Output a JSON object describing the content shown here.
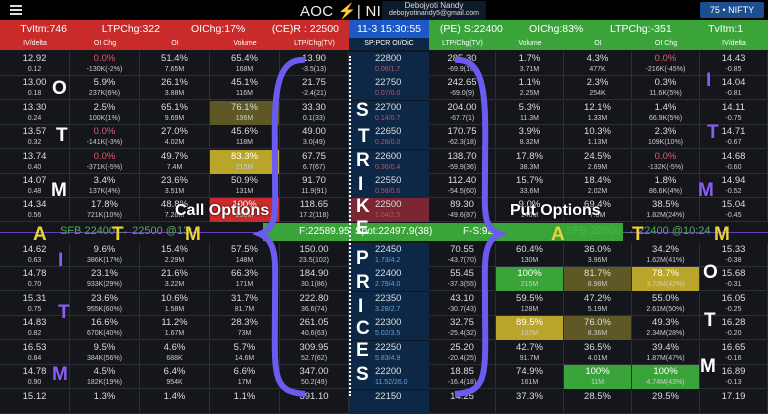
{
  "topbar": {
    "title": "AOC ⚡| NIFTY",
    "user_name": "Debojyoti Nandy",
    "user_email": "debojyotinandy5@gmail.com",
    "lot_button": "75 • NIFTY"
  },
  "summary": {
    "ce": {
      "tvitm": "TvItm:746",
      "ltp_chg": "LTPChg:322",
      "oi_chg": "OIChg:17%",
      "resistance": "(CE)R : 22500"
    },
    "timestamp": "11-3 15:30:55",
    "pe": {
      "support": "(PE) S:22400",
      "oi_chg": "OIChg:83%",
      "ltp_chg": "LTPChg:-351",
      "tvitm": "TvItm:1"
    }
  },
  "headers": {
    "ce": [
      "IV/delta",
      "OI Chg",
      "OI",
      "Volume",
      "LTP/Chg(TV)"
    ],
    "mid": "SP:PCR OI/OiC",
    "pe": [
      "LTP/Chg(TV)",
      "Volume",
      "OI",
      "OI Chg",
      "IV/delta"
    ]
  },
  "rows": [
    {
      "ce": [
        [
          "12.92",
          "0.12"
        ],
        [
          "0.0%",
          "-130K(-2%)"
        ],
        [
          "51.4%",
          "7.65M"
        ],
        [
          "65.4%",
          "168M"
        ],
        [
          "13.90",
          "-3.5(13)"
        ]
      ],
      "strike": [
        "22800",
        "0.06/1.7"
      ],
      "pe": [
        [
          "285.30",
          "-69.9(16)"
        ],
        [
          "1.7%",
          "3.71M"
        ],
        [
          "4.3%",
          "477K"
        ],
        [
          "0.0%",
          "-216K(-45%)"
        ],
        [
          "14.43",
          "-0.85"
        ]
      ]
    },
    {
      "ce": [
        [
          "13.00",
          "0.18"
        ],
        [
          "5.9%",
          "237K(6%)"
        ],
        [
          "26.1%",
          "3.88M"
        ],
        [
          "45.1%",
          "116M"
        ],
        [
          "21.75",
          "-2.4(21)"
        ]
      ],
      "strike": [
        "22750",
        "0.07/0.0"
      ],
      "pe": [
        [
          "242.65",
          "-69.0(9)"
        ],
        [
          "1.1%",
          "2.25M"
        ],
        [
          "2.3%",
          "254K"
        ],
        [
          "0.3%",
          "11.6K(5%)"
        ],
        [
          "14.04",
          "-0.81"
        ]
      ]
    },
    {
      "ce": [
        [
          "13.30",
          "0.24"
        ],
        [
          "2.5%",
          "100K(1%)"
        ],
        [
          "65.1%",
          "9.69M"
        ],
        [
          "76.1%",
          "196M"
        ],
        [
          "33.30",
          "0.1(33)"
        ]
      ],
      "strike": [
        "22700",
        "0.14/0.7"
      ],
      "pe": [
        [
          "204.00",
          "-67.7(1)"
        ],
        [
          "5.3%",
          "11.3M"
        ],
        [
          "12.1%",
          "1.33M"
        ],
        [
          "1.4%",
          "66.9K(5%)"
        ],
        [
          "14.11",
          "-0.75"
        ]
      ]
    },
    {
      "ce": [
        [
          "13.57",
          "0.32"
        ],
        [
          "0.0%",
          "-141K(-3%)"
        ],
        [
          "27.0%",
          "4.02M"
        ],
        [
          "45.6%",
          "118M"
        ],
        [
          "49.00",
          "3.0(49)"
        ]
      ],
      "strike": [
        "22650",
        "0.28/0.0"
      ],
      "pe": [
        [
          "170.75",
          "-62.3(18)"
        ],
        [
          "3.9%",
          "8.32M"
        ],
        [
          "10.3%",
          "1.13M"
        ],
        [
          "2.3%",
          "109K(10%)"
        ],
        [
          "14.71",
          "-0.67"
        ]
      ]
    },
    {
      "ce": [
        [
          "13.74",
          "0.40"
        ],
        [
          "0.0%",
          "-371K(-5%)"
        ],
        [
          "49.7%",
          "7.4M"
        ],
        [
          "83.3%",
          "215M"
        ],
        [
          "67.75",
          "6.7(67)"
        ]
      ],
      "strike": [
        "22600",
        "0.36/0.4"
      ],
      "pe": [
        [
          "138.70",
          "-59.9(36)"
        ],
        [
          "17.8%",
          "38.3M"
        ],
        [
          "24.5%",
          "2.69M"
        ],
        [
          "0.0%",
          "-132K(-5%)"
        ],
        [
          "14.68",
          "-0.60"
        ]
      ]
    },
    {
      "ce": [
        [
          "14.07",
          "0.48"
        ],
        [
          "3.4%",
          "137K(4%)"
        ],
        [
          "23.6%",
          "3.51M"
        ],
        [
          "50.9%",
          "131M"
        ],
        [
          "91.70",
          "11.9(91)"
        ]
      ],
      "strike": [
        "22550",
        "0.58/0.6"
      ],
      "pe": [
        [
          "112.40",
          "-54.5(60)"
        ],
        [
          "15.7%",
          "33.6M"
        ],
        [
          "18.4%",
          "2.02M"
        ],
        [
          "1.8%",
          "86.6K(4%)"
        ],
        [
          "14.94",
          "-0.52"
        ]
      ]
    },
    {
      "ce": [
        [
          "14.34",
          "0.56"
        ],
        [
          "17.8%",
          "721K(10%)"
        ],
        [
          "48.8%",
          "7.28M"
        ],
        [
          "100%",
          "250M"
        ],
        [
          "118.65",
          "17.2(118)"
        ]
      ],
      "strike": [
        "22500",
        "1.04/2.5"
      ],
      "pe": [
        [
          "89.30",
          "-49.6(87)"
        ],
        [
          "9.0%",
          "146M"
        ],
        [
          "69.4%",
          "7.6M"
        ],
        [
          "38.5%",
          "1.82M(24%)"
        ],
        [
          "15.04",
          "-0.45"
        ]
      ]
    },
    {
      "ce": [
        [
          "14.62",
          "0.63"
        ],
        [
          "9.6%",
          "386K(17%)"
        ],
        [
          "15.4%",
          "2.29M"
        ],
        [
          "57.5%",
          "148M"
        ],
        [
          "150.00",
          "23.5(102)"
        ]
      ],
      "strike": [
        "22450",
        "1.73/4.2"
      ],
      "pe": [
        [
          "70.55",
          "-43.7(70)"
        ],
        [
          "60.4%",
          "130M"
        ],
        [
          "36.0%",
          "3.96M"
        ],
        [
          "34.2%",
          "1.62M(41%)"
        ],
        [
          "15.33",
          "-0.38"
        ]
      ]
    },
    {
      "ce": [
        [
          "14.78",
          "0.70"
        ],
        [
          "23.1%",
          "933K(29%)"
        ],
        [
          "21.6%",
          "3.22M"
        ],
        [
          "66.3%",
          "171M"
        ],
        [
          "184.90",
          "30.1(86)"
        ]
      ],
      "strike": [
        "22400",
        "2.79/4.0"
      ],
      "pe": [
        [
          "55.45",
          "-37.3(55)"
        ],
        [
          "100%",
          "215M"
        ],
        [
          "81.7%",
          "8.98M"
        ],
        [
          "78.7%",
          "3.73M(42%)"
        ],
        [
          "15.68",
          "-0.31"
        ]
      ]
    },
    {
      "ce": [
        [
          "15.31",
          "0.75"
        ],
        [
          "23.6%",
          "955K(60%)"
        ],
        [
          "10.6%",
          "1.58M"
        ],
        [
          "31.7%",
          "81.7M"
        ],
        [
          "222.80",
          "36.6(74)"
        ]
      ],
      "strike": [
        "22350",
        "3.28/2.7"
      ],
      "pe": [
        [
          "43.10",
          "-30.7(43)"
        ],
        [
          "59.5%",
          "128M"
        ],
        [
          "47.2%",
          "5.19M"
        ],
        [
          "55.0%",
          "2.61M(50%)"
        ],
        [
          "16.05",
          "-0.25"
        ]
      ]
    },
    {
      "ce": [
        [
          "14.83",
          "0.82"
        ],
        [
          "16.6%",
          "670K(40%)"
        ],
        [
          "11.2%",
          "1.67M"
        ],
        [
          "28.3%",
          "73M"
        ],
        [
          "261.05",
          "40.6(63)"
        ]
      ],
      "strike": [
        "22300",
        "5.02/3.5"
      ],
      "pe": [
        [
          "32.75",
          "-25.4(32)"
        ],
        [
          "89.5%",
          "192M"
        ],
        [
          "76.0%",
          "8.36M"
        ],
        [
          "49.3%",
          "2.34M(28%)"
        ],
        [
          "16.28",
          "-0.20"
        ]
      ]
    },
    {
      "ce": [
        [
          "16.53",
          "0.84"
        ],
        [
          "9.5%",
          "384K(56%)"
        ],
        [
          "4.6%",
          "688K"
        ],
        [
          "5.7%",
          "14.6M"
        ],
        [
          "309.95",
          "52.7(62)"
        ]
      ],
      "strike": [
        "22250",
        "5.83/4.9"
      ],
      "pe": [
        [
          "25.20",
          "-20.4(25)"
        ],
        [
          "42.7%",
          "91.7M"
        ],
        [
          "36.5%",
          "4.01M"
        ],
        [
          "39.4%",
          "1.87M(47%)"
        ],
        [
          "16.65",
          "-0.16"
        ]
      ]
    },
    {
      "ce": [
        [
          "14.78",
          "0.90"
        ],
        [
          "4.5%",
          "182K(19%)"
        ],
        [
          "6.4%",
          "954K"
        ],
        [
          "6.6%",
          "17M"
        ],
        [
          "347.00",
          "50.2(49)"
        ]
      ],
      "strike": [
        "22200",
        "11.52/26.0"
      ],
      "pe": [
        [
          "18.85",
          "-16.4(18)"
        ],
        [
          "74.9%",
          "161M"
        ],
        [
          "100%",
          "11M"
        ],
        [
          "100%",
          "4.74M(43%)"
        ],
        [
          "16.89",
          "-0.13"
        ]
      ]
    },
    {
      "ce": [
        [
          "15.12",
          ""
        ],
        [
          "1.3%",
          ""
        ],
        [
          "1.4%",
          ""
        ],
        [
          "1.1%",
          ""
        ],
        [
          "391.10",
          ""
        ]
      ],
      "strike": [
        "22150",
        ""
      ],
      "pe": [
        [
          "14.25",
          ""
        ],
        [
          "37.3%",
          ""
        ],
        [
          "28.5%",
          ""
        ],
        [
          "29.5%",
          ""
        ],
        [
          "17.19",
          ""
        ]
      ]
    }
  ],
  "spot": {
    "sfb_left": "SFB 22400 → 22500 @13:",
    "futures": "F:22589.95",
    "spot": "Spot:22497.9(38)",
    "fs": "F-S:92",
    "sfb_right": "SFB 22500 → 22400 @10:24"
  },
  "annotations": {
    "call_label": "Call Options",
    "put_label": "Put Options",
    "strike_prices": [
      "S",
      "T",
      "R",
      "I",
      "K",
      "E",
      "P",
      "R",
      "I",
      "C",
      "E",
      "S"
    ],
    "otm_left": [
      "O",
      "T",
      "M"
    ],
    "atm_left": [
      "A",
      "T",
      "M"
    ],
    "itm_left": [
      "I",
      "T",
      "M"
    ],
    "itm_right": [
      "I",
      "T",
      "M"
    ],
    "atm_right": [
      "A",
      "T",
      "M"
    ],
    "otm_right": [
      "O",
      "T",
      "M"
    ]
  },
  "colors": {
    "ce_red": "#c92a2a",
    "pe_green": "#3aa43a",
    "strike_blue": "#0c2846",
    "highlight_yellow": "#b9a52a",
    "annotation_purple": "#8b5cf6"
  }
}
